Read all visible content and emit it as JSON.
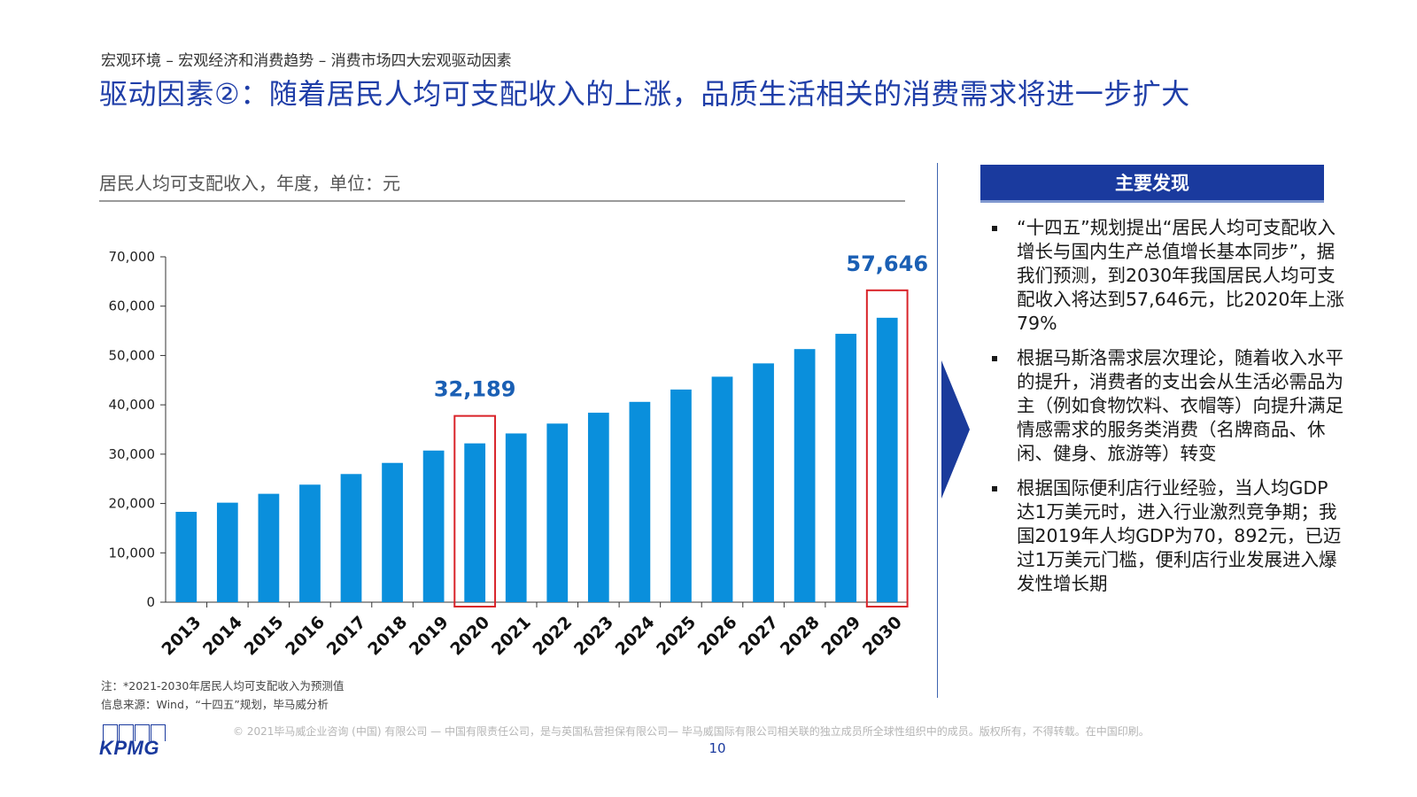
{
  "header": {
    "breadcrumb": "宏观环境 – 宏观经济和消费趋势 – 消费市场四大宏观驱动因素",
    "title": "驱动因素②：随着居民人均可支配收入的上涨，品质生活相关的消费需求将进一步扩大"
  },
  "chart_data": {
    "type": "bar",
    "title": "居民人均可支配收入，年度，单位：元",
    "categories": [
      "2013",
      "2014",
      "2015",
      "2016",
      "2017",
      "2018",
      "2019",
      "2020",
      "2021",
      "2022",
      "2023",
      "2024",
      "2025",
      "2026",
      "2027",
      "2028",
      "2029",
      "2030"
    ],
    "values": [
      18311,
      20167,
      21966,
      23821,
      25974,
      28228,
      30733,
      32189,
      34200,
      36200,
      38400,
      40600,
      43100,
      45700,
      48400,
      51300,
      54400,
      57646
    ],
    "ylim": [
      0,
      70000
    ],
    "yticks": [
      0,
      10000,
      20000,
      30000,
      40000,
      50000,
      60000,
      70000
    ],
    "ytick_labels": [
      "0",
      "10,000",
      "20,000",
      "30,000",
      "40,000",
      "50,000",
      "60,000",
      "70,000"
    ],
    "xlabel": "",
    "ylabel": "",
    "bar_color": "#0a8fdc",
    "highlight_color": "#d9242a",
    "label_color": "#1a5fb4",
    "highlights": [
      {
        "category": "2020",
        "label": "32,189"
      },
      {
        "category": "2030",
        "label": "57,646"
      }
    ],
    "grid": false,
    "legend": "none"
  },
  "findings": {
    "header": "主要发现",
    "items": [
      "“十四五”规划提出“居民人均可支配收入增长与国内生产总值增长基本同步”，据我们预测，到2030年我国居民人均可支配收入将达到57,646元，比2020年上涨79%",
      "根据马斯洛需求层次理论，随着收入水平的提升，消费者的支出会从生活必需品为主（例如食物饮料、衣帽等）向提升满足情感需求的服务类消费（名牌商品、休闲、健身、旅游等）转变",
      "根据国际便利店行业经验，当人均GDP达1万美元时，进入行业激烈竞争期；我国2019年人均GDP为70，892元，已迈过1万美元门槛，便利店行业发展进入爆发性增长期"
    ]
  },
  "notes": {
    "note": "注：*2021-2030年居民人均可支配收入为预测值",
    "source": "信息来源：Wind，“十四五”规划，毕马威分析"
  },
  "footer": {
    "copyright": "© 2021毕马威企业咨询 (中国) 有限公司 — 中国有限责任公司，是与英国私营担保有限公司— 毕马威国际有限公司相关联的独立成员所全球性组织中的成员。版权所有，不得转载。在中国印刷。",
    "page_number": "10",
    "logo_text": "KPMG"
  },
  "colors": {
    "brand_blue": "#1a3a9e",
    "title_blue": "#1f3ea8"
  }
}
